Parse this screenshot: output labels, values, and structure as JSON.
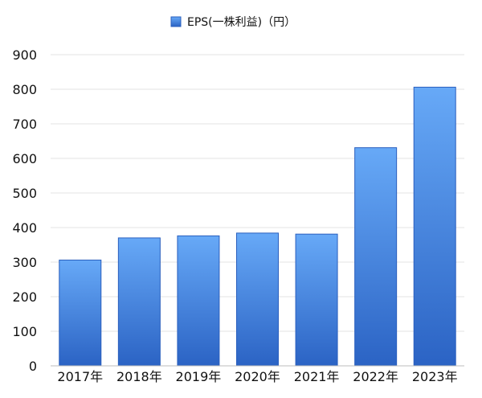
{
  "chart_data": {
    "type": "bar",
    "categories": [
      "2017年",
      "2018年",
      "2019年",
      "2020年",
      "2021年",
      "2022年",
      "2023年"
    ],
    "series": [
      {
        "name": "EPS(一株利益)（円）",
        "values": [
          306,
          370,
          376,
          384,
          381,
          631,
          806
        ]
      }
    ],
    "title": "",
    "xlabel": "",
    "ylabel": "",
    "ylim": [
      0,
      900
    ],
    "yticks": [
      0,
      100,
      200,
      300,
      400,
      500,
      600,
      700,
      800,
      900
    ],
    "grid": true,
    "legend": "top-center",
    "colors": {
      "bar_top": "#67a9f7",
      "bar_bottom": "#2b63c4",
      "bar_stroke": "#2a5fbe",
      "grid": "#e3e3e3",
      "axis": "#bdbdbd"
    }
  }
}
